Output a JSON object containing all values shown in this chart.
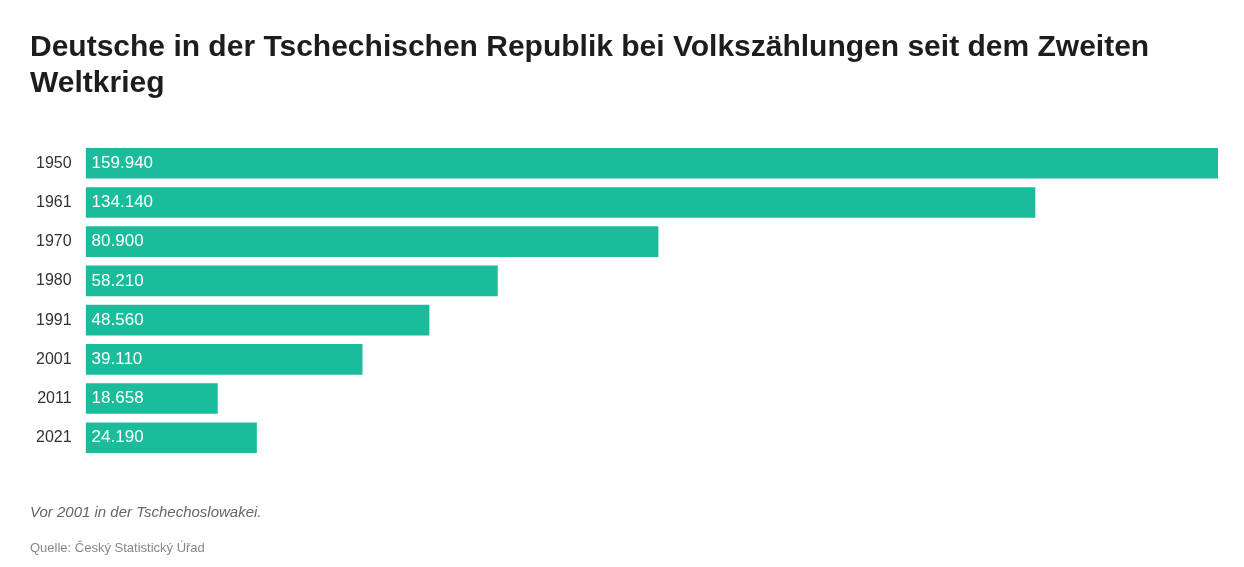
{
  "chart_data": {
    "type": "bar",
    "orientation": "horizontal",
    "title": "Deutsche in der Tschechischen Republik bei Volkszählungen seit dem Zweiten Weltkrieg",
    "categories": [
      "1950",
      "1961",
      "1970",
      "1980",
      "1991",
      "2001",
      "2011",
      "2021"
    ],
    "values": [
      159940,
      134140,
      80900,
      58210,
      48560,
      39110,
      18658,
      24190
    ],
    "value_labels": [
      "159.940",
      "134.140",
      "80.900",
      "58.210",
      "48.560",
      "39.110",
      "18.658",
      "24.190"
    ],
    "color": "#1abc9c",
    "legend": false,
    "tick_labels": "y",
    "annotations": [
      "Vor 2001 in der Tschechoslowakei.",
      "Quelle: Český Statistický Úřad"
    ]
  }
}
